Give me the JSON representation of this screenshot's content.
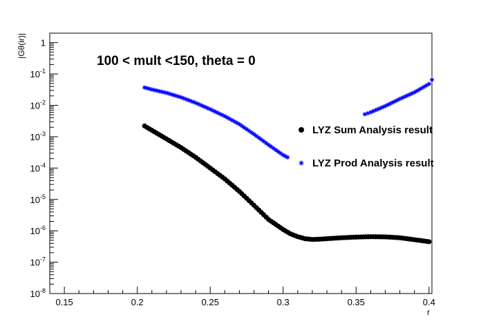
{
  "chart_data": {
    "type": "scatter",
    "title": "100 < mult <150, theta = 0",
    "xlabel": "r",
    "ylabel": "|Gθ(ir)|",
    "xlim": [
      0.14,
      0.402
    ],
    "ylim": [
      1e-08,
      2
    ],
    "yscale": "log",
    "grid": false,
    "legend_position": "right",
    "x_ticks": [
      "0.15",
      "0.2",
      "0.25",
      "0.3",
      "0.35",
      "0.4"
    ],
    "x_tick_values": [
      0.15,
      0.2,
      0.25,
      0.3,
      0.35,
      0.4
    ],
    "y_tick_values": [
      1e-08,
      1e-07,
      1e-06,
      1e-05,
      0.0001,
      0.001,
      0.01,
      0.1,
      1
    ],
    "y_tick_base": "10",
    "y_tick_exponents": [
      "-8",
      "-7",
      "-6",
      "-5",
      "-4",
      "-3",
      "-2",
      "-1",
      ""
    ],
    "y_tick_one": "1",
    "series": [
      {
        "name": "LYZ Sum Analysis result",
        "marker": "circle",
        "color": "#000000",
        "x": [
          0.205,
          0.21,
          0.22,
          0.23,
          0.24,
          0.25,
          0.26,
          0.27,
          0.28,
          0.29,
          0.3,
          0.305,
          0.31,
          0.315,
          0.32,
          0.325,
          0.33,
          0.34,
          0.35,
          0.36,
          0.37,
          0.38,
          0.39,
          0.4
        ],
        "y": [
          0.0022,
          0.0016,
          0.00085,
          0.00045,
          0.00022,
          0.0001,
          4.5e-05,
          1.8e-05,
          6.5e-06,
          2.3e-06,
          1.1e-06,
          8e-07,
          6.5e-07,
          5.6e-07,
          5.3e-07,
          5.4e-07,
          5.6e-07,
          6e-07,
          6.3e-07,
          6.5e-07,
          6.4e-07,
          6e-07,
          5.2e-07,
          4.5e-07
        ]
      },
      {
        "name": "LYZ Prod Analysis result",
        "marker": "star",
        "color": "#0000ff",
        "x": [
          0.205,
          0.21,
          0.22,
          0.23,
          0.24,
          0.25,
          0.26,
          0.27,
          0.28,
          0.29,
          0.3,
          0.303,
          0.356,
          0.36,
          0.37,
          0.38,
          0.39,
          0.4,
          0.402
        ],
        "y": [
          0.037,
          0.032,
          0.025,
          0.018,
          0.012,
          0.0075,
          0.0045,
          0.0025,
          0.0012,
          0.00055,
          0.00026,
          0.00022,
          0.0052,
          0.006,
          0.0095,
          0.016,
          0.026,
          0.048,
          0.065
        ]
      }
    ]
  }
}
